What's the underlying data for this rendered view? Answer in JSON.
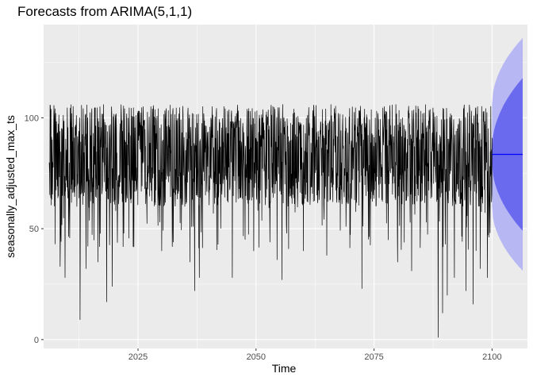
{
  "chart_data": {
    "type": "line",
    "title": "Forecasts from ARIMA(5,1,1)",
    "xlabel": "Time",
    "ylabel": "seasonally_adjusted_max_ts",
    "xlim": [
      2005,
      2107.5
    ],
    "ylim": [
      -4,
      142
    ],
    "x_ticks": [
      2025,
      2050,
      2075,
      2100
    ],
    "y_ticks": [
      0,
      50,
      100
    ],
    "grid": true,
    "observed": {
      "x_start": 2006.2,
      "x_end": 2100,
      "typical_low": 60,
      "typical_high": 104,
      "summary": {
        "min": 1,
        "max": 107,
        "median": 84
      },
      "dips": [
        {
          "x": 2006.5,
          "y": 64
        },
        {
          "x": 2008.5,
          "y": 33
        },
        {
          "x": 2009.5,
          "y": 28
        },
        {
          "x": 2012.7,
          "y": 9
        },
        {
          "x": 2014.0,
          "y": 32
        },
        {
          "x": 2016.5,
          "y": 35
        },
        {
          "x": 2018.4,
          "y": 17
        },
        {
          "x": 2019.5,
          "y": 24
        },
        {
          "x": 2024.0,
          "y": 42
        },
        {
          "x": 2030.0,
          "y": 40
        },
        {
          "x": 2032.5,
          "y": 44
        },
        {
          "x": 2036.0,
          "y": 35
        },
        {
          "x": 2037.0,
          "y": 22
        },
        {
          "x": 2038.0,
          "y": 28
        },
        {
          "x": 2042.0,
          "y": 43
        },
        {
          "x": 2045.0,
          "y": 28
        },
        {
          "x": 2049.5,
          "y": 40
        },
        {
          "x": 2053.0,
          "y": 44
        },
        {
          "x": 2054.5,
          "y": 36
        },
        {
          "x": 2055.5,
          "y": 27
        },
        {
          "x": 2060.0,
          "y": 40
        },
        {
          "x": 2065.0,
          "y": 38
        },
        {
          "x": 2072.5,
          "y": 23
        },
        {
          "x": 2078.0,
          "y": 45
        },
        {
          "x": 2080.0,
          "y": 35
        },
        {
          "x": 2083.0,
          "y": 31
        },
        {
          "x": 2088.6,
          "y": 1
        },
        {
          "x": 2089.5,
          "y": 12
        },
        {
          "x": 2090.5,
          "y": 20
        },
        {
          "x": 2092.0,
          "y": 28
        },
        {
          "x": 2094.5,
          "y": 22
        },
        {
          "x": 2096.0,
          "y": 16
        },
        {
          "x": 2097.5,
          "y": 32
        },
        {
          "x": 2099.0,
          "y": 28
        }
      ]
    },
    "forecast": {
      "x_start": 2100,
      "x_end": 2106.5,
      "mean": 83.5,
      "pi80_end": [
        49,
        118
      ],
      "pi95_end": [
        31,
        136
      ],
      "pi80_start": [
        80,
        86
      ],
      "pi95_start": [
        60,
        106
      ]
    },
    "colors": {
      "observed": "#000000",
      "forecast_mean": "#0000ff",
      "band_80": "#6a6aef",
      "band_95": "#b7b7f4",
      "panel": "#ebebeb",
      "grid": "#ffffff"
    }
  }
}
